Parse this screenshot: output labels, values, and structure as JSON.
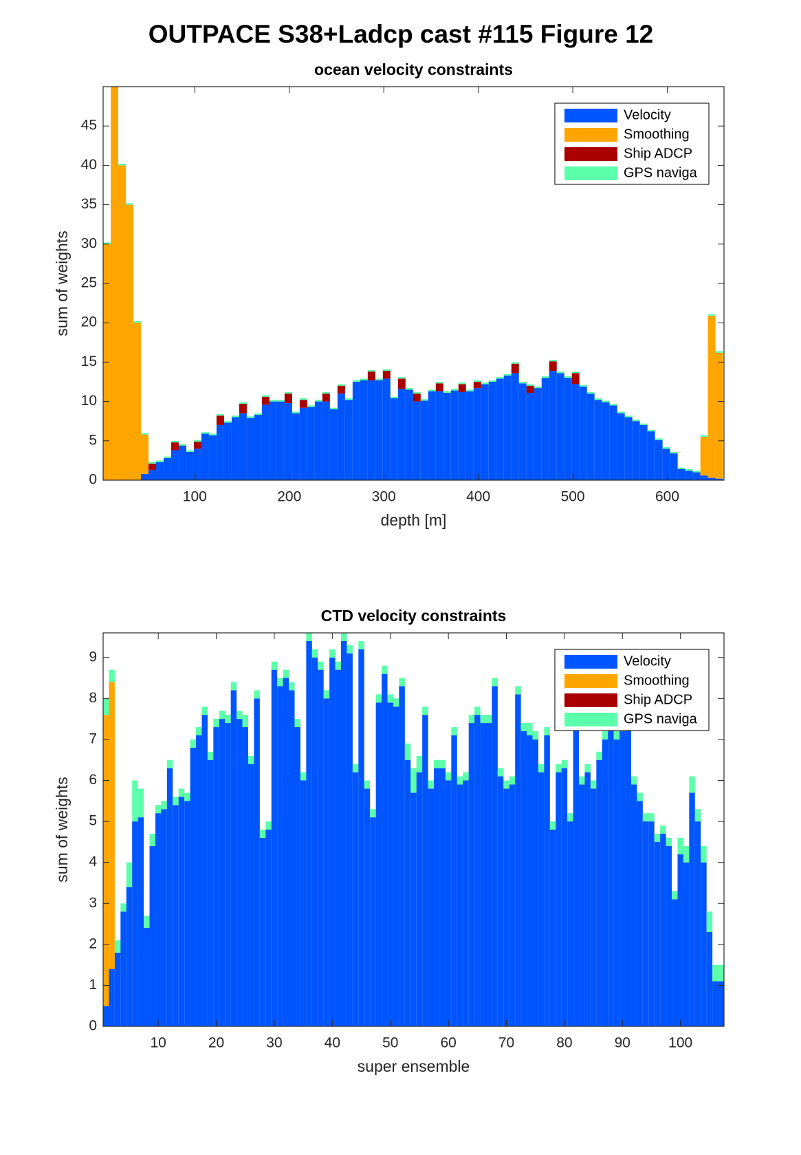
{
  "title": "OUTPACE S38+Ladcp cast #115  Figure 12",
  "chart_data": [
    {
      "type": "bar",
      "stacked": true,
      "title": "ocean velocity constraints",
      "xlabel": "depth [m]",
      "ylabel": "sum of weights",
      "x": [
        7,
        15,
        23,
        31,
        39,
        47,
        55,
        63,
        71,
        79,
        87,
        95,
        103,
        111,
        119,
        127,
        135,
        143,
        151,
        159,
        167,
        175,
        183,
        191,
        199,
        207,
        215,
        223,
        231,
        239,
        247,
        255,
        263,
        271,
        279,
        287,
        295,
        303,
        311,
        319,
        327,
        335,
        343,
        351,
        359,
        367,
        375,
        383,
        391,
        399,
        407,
        415,
        423,
        431,
        439,
        447,
        455,
        463,
        471,
        479,
        487,
        495,
        503,
        511,
        519,
        527,
        535,
        543,
        551,
        559,
        567,
        575,
        583,
        591,
        599,
        607,
        615,
        623,
        631,
        639,
        647,
        655
      ],
      "xlim": [
        3,
        660
      ],
      "xticks": [
        100,
        200,
        300,
        400,
        500,
        600
      ],
      "ylim": [
        0,
        50
      ],
      "yticks": [
        0,
        5,
        10,
        15,
        20,
        25,
        30,
        35,
        40,
        45
      ],
      "legend": "northeast",
      "series": [
        {
          "name": "Velocity",
          "color": "#0055ff",
          "values": [
            0,
            0,
            0,
            0,
            0,
            0.8,
            1.3,
            2.3,
            2.8,
            3.8,
            4.4,
            3.6,
            4.0,
            5.9,
            5.7,
            7.0,
            7.3,
            8.0,
            8.5,
            7.9,
            8.3,
            9.6,
            10.0,
            10.0,
            9.8,
            8.5,
            9.2,
            9.3,
            10.0,
            10.0,
            9.0,
            11.0,
            10.2,
            12.5,
            12.7,
            12.7,
            12.7,
            12.9,
            10.4,
            11.6,
            11.5,
            10.0,
            10.1,
            11.3,
            11.3,
            11.1,
            11.4,
            11.2,
            11.3,
            11.7,
            12.2,
            12.5,
            12.9,
            13.3,
            13.6,
            12.3,
            11.1,
            11.7,
            13.0,
            13.9,
            13.6,
            13.0,
            12.2,
            11.9,
            11.0,
            10.2,
            9.9,
            9.5,
            8.5,
            8.0,
            7.5,
            7.0,
            6.2,
            5.1,
            4.0,
            3.4,
            1.4,
            1.2,
            1.0,
            0.6,
            0.3,
            0.2
          ]
        },
        {
          "name": "Smoothing",
          "color": "#ffa500",
          "values": [
            30,
            50,
            40,
            35,
            20,
            5.0,
            0,
            0,
            0,
            0,
            0,
            0,
            0,
            0,
            0,
            0,
            0,
            0,
            0,
            0,
            0,
            0,
            0,
            0,
            0,
            0,
            0,
            0,
            0,
            0,
            0,
            0,
            0,
            0,
            0,
            0,
            0,
            0,
            0,
            0,
            0,
            0,
            0,
            0,
            0,
            0,
            0,
            0,
            0,
            0,
            0,
            0,
            0,
            0,
            0,
            0,
            0,
            0,
            0,
            0,
            0,
            0,
            0,
            0,
            0,
            0,
            0,
            0,
            0,
            0,
            0,
            0,
            0,
            0,
            0,
            0,
            0,
            0,
            0,
            4.9,
            20.6,
            16.0
          ]
        },
        {
          "name": "Ship ADCP",
          "color": "#aa0000",
          "values": [
            0,
            0,
            0,
            0,
            0,
            0,
            0.8,
            0,
            0,
            1.0,
            0,
            0,
            0.9,
            0,
            0,
            1.2,
            0,
            0,
            1.2,
            0,
            0,
            1.0,
            0,
            0,
            1.2,
            0,
            1.0,
            0,
            0,
            1.0,
            0,
            1.0,
            0,
            0,
            0,
            1.1,
            0,
            1.0,
            0,
            1.3,
            0,
            1.0,
            0,
            0,
            1.0,
            0,
            0,
            1.0,
            0,
            0.8,
            0,
            0,
            0,
            0,
            1.2,
            0,
            0.9,
            0,
            0,
            1.2,
            0,
            0,
            1.4,
            0,
            0,
            0,
            0,
            0,
            0,
            0,
            0,
            0,
            0,
            0,
            0,
            0,
            0,
            0,
            0,
            0,
            0,
            0
          ]
        },
        {
          "name": "GPS naviga",
          "color": "#5cffaa",
          "values": [
            0.2,
            0.2,
            0.2,
            0.2,
            0.2,
            0.2,
            0.2,
            0.2,
            0.2,
            0.2,
            0.2,
            0.2,
            0.2,
            0.2,
            0.2,
            0.2,
            0.2,
            0.2,
            0.2,
            0.2,
            0.2,
            0.2,
            0.2,
            0.2,
            0.2,
            0.2,
            0.2,
            0.2,
            0.2,
            0.2,
            0.2,
            0.2,
            0.2,
            0.2,
            0.2,
            0.2,
            0.2,
            0.2,
            0.2,
            0.2,
            0.2,
            0.2,
            0.2,
            0.2,
            0.2,
            0.2,
            0.2,
            0.2,
            0.2,
            0.2,
            0.2,
            0.2,
            0.2,
            0.2,
            0.2,
            0.2,
            0.2,
            0.2,
            0.2,
            0.2,
            0.2,
            0.2,
            0.2,
            0.2,
            0.2,
            0.2,
            0.2,
            0.2,
            0.2,
            0.2,
            0.2,
            0.2,
            0.2,
            0.2,
            0.2,
            0.2,
            0.2,
            0.2,
            0.2,
            0.2,
            0.2,
            0.2
          ]
        }
      ]
    },
    {
      "type": "bar",
      "stacked": true,
      "title": "CTD velocity constraints",
      "xlabel": "super ensemble",
      "ylabel": "sum of weights",
      "x": [
        1,
        2,
        3,
        4,
        5,
        6,
        7,
        8,
        9,
        10,
        11,
        12,
        13,
        14,
        15,
        16,
        17,
        18,
        19,
        20,
        21,
        22,
        23,
        24,
        25,
        26,
        27,
        28,
        29,
        30,
        31,
        32,
        33,
        34,
        35,
        36,
        37,
        38,
        39,
        40,
        41,
        42,
        43,
        44,
        45,
        46,
        47,
        48,
        49,
        50,
        51,
        52,
        53,
        54,
        55,
        56,
        57,
        58,
        59,
        60,
        61,
        62,
        63,
        64,
        65,
        66,
        67,
        68,
        69,
        70,
        71,
        72,
        73,
        74,
        75,
        76,
        77,
        78,
        79,
        80,
        81,
        82,
        83,
        84,
        85,
        86,
        87,
        88,
        89,
        90,
        91,
        92,
        93,
        94,
        95,
        96,
        97,
        98,
        99,
        100,
        101,
        102,
        103,
        104,
        105,
        106,
        107
      ],
      "xlim": [
        0.5,
        107.5
      ],
      "xticks": [
        10,
        20,
        30,
        40,
        50,
        60,
        70,
        80,
        90,
        100
      ],
      "ylim": [
        0,
        9.6
      ],
      "yticks": [
        0,
        1,
        2,
        3,
        4,
        5,
        6,
        7,
        8,
        9
      ],
      "legend": "northeast",
      "series": [
        {
          "name": "Velocity",
          "color": "#0055ff",
          "values": [
            0.5,
            1.4,
            1.8,
            2.8,
            3.4,
            5.0,
            5.1,
            2.4,
            4.4,
            5.2,
            5.3,
            6.3,
            5.4,
            5.6,
            5.5,
            6.8,
            7.1,
            7.6,
            6.5,
            7.3,
            7.5,
            7.4,
            8.2,
            7.5,
            7.3,
            6.4,
            8.0,
            4.6,
            4.8,
            8.7,
            8.3,
            8.5,
            8.2,
            7.3,
            6.0,
            9.4,
            9.0,
            8.7,
            8.0,
            9.0,
            8.7,
            9.4,
            9.1,
            6.2,
            9.2,
            5.8,
            5.1,
            7.9,
            8.6,
            7.9,
            7.8,
            8.3,
            6.5,
            5.7,
            6.2,
            7.6,
            5.8,
            6.3,
            6.3,
            6.0,
            7.1,
            5.9,
            6.0,
            7.4,
            7.6,
            7.4,
            7.4,
            8.3,
            6.1,
            5.8,
            5.9,
            8.1,
            7.2,
            7.1,
            7.0,
            6.2,
            7.1,
            4.8,
            6.2,
            6.3,
            5.0,
            7.5,
            5.9,
            6.2,
            5.8,
            6.5,
            7.0,
            7.3,
            7.0,
            7.2,
            7.3,
            5.9,
            5.5,
            5.0,
            5.0,
            4.5,
            4.7,
            4.4,
            3.1,
            4.2,
            4.0,
            5.7,
            5.0,
            4.0,
            2.3,
            1.1,
            1.1
          ]
        },
        {
          "name": "Smoothing",
          "color": "#ffa500",
          "values": [
            7.1,
            7.0,
            0,
            0,
            0,
            0,
            0,
            0,
            0,
            0,
            0,
            0,
            0,
            0,
            0,
            0,
            0,
            0,
            0,
            0,
            0,
            0,
            0,
            0,
            0,
            0,
            0,
            0,
            0,
            0,
            0,
            0,
            0,
            0,
            0,
            0,
            0,
            0,
            0,
            0,
            0,
            0,
            0,
            0,
            0,
            0,
            0,
            0,
            0,
            0,
            0,
            0,
            0,
            0,
            0,
            0,
            0,
            0,
            0,
            0,
            0,
            0,
            0,
            0,
            0,
            0,
            0,
            0,
            0,
            0,
            0,
            0,
            0,
            0,
            0,
            0,
            0,
            0,
            0,
            0,
            0,
            0,
            0,
            0,
            0,
            0,
            0,
            0,
            0,
            0,
            0,
            0,
            0,
            0,
            0,
            0,
            0,
            0,
            0,
            0,
            0,
            0,
            0,
            0,
            0,
            0,
            0
          ]
        },
        {
          "name": "Ship ADCP",
          "color": "#aa0000",
          "values": [
            0,
            0,
            0,
            0,
            0,
            0,
            0,
            0,
            0,
            0,
            0,
            0,
            0,
            0,
            0,
            0,
            0,
            0,
            0,
            0,
            0,
            0,
            0,
            0,
            0,
            0,
            0,
            0,
            0,
            0,
            0,
            0,
            0,
            0,
            0,
            0,
            0,
            0,
            0,
            0,
            0,
            0,
            0,
            0,
            0,
            0,
            0,
            0,
            0,
            0,
            0,
            0,
            0,
            0,
            0,
            0,
            0,
            0,
            0,
            0,
            0,
            0,
            0,
            0,
            0,
            0,
            0,
            0,
            0,
            0,
            0,
            0,
            0,
            0,
            0,
            0,
            0,
            0,
            0,
            0,
            0,
            0,
            0,
            0,
            0,
            0,
            0,
            0,
            0,
            0,
            0,
            0,
            0,
            0,
            0,
            0,
            0,
            0,
            0,
            0,
            0,
            0,
            0,
            0,
            0,
            0,
            0
          ]
        },
        {
          "name": "GPS naviga",
          "color": "#5cffaa",
          "values": [
            0.4,
            0.3,
            0.3,
            0.2,
            0.6,
            1.0,
            0.7,
            0.3,
            0.3,
            0.2,
            0.2,
            0.2,
            0.2,
            0.2,
            0.2,
            0.2,
            0.2,
            0.2,
            0.2,
            0.2,
            0.2,
            0.2,
            0.2,
            0.2,
            0.3,
            0.2,
            0.2,
            0.2,
            0.2,
            0.2,
            0.2,
            0.2,
            0.2,
            0.2,
            0.2,
            0.2,
            0.2,
            0.2,
            0.2,
            0.2,
            0.2,
            0.2,
            0.2,
            0.2,
            0.2,
            0.2,
            0.2,
            0.2,
            0.2,
            0.2,
            0.2,
            0.2,
            0.4,
            0.6,
            0.4,
            0.2,
            0.2,
            0.2,
            0.2,
            0.2,
            0.2,
            0.2,
            0.2,
            0.2,
            0.2,
            0.2,
            0.2,
            0.2,
            0.2,
            0.2,
            0.2,
            0.2,
            0.2,
            0.3,
            0.2,
            0.2,
            0.2,
            0.2,
            0.2,
            0.2,
            0.2,
            0.2,
            0.2,
            0.2,
            0.2,
            0.2,
            0.2,
            0.2,
            0.2,
            0.2,
            0.2,
            0.2,
            0.2,
            0.2,
            0.2,
            0.2,
            0.2,
            0.2,
            0.2,
            0.4,
            0.4,
            0.4,
            0.3,
            0.4,
            0.5,
            0.4,
            0.4
          ]
        }
      ]
    }
  ]
}
